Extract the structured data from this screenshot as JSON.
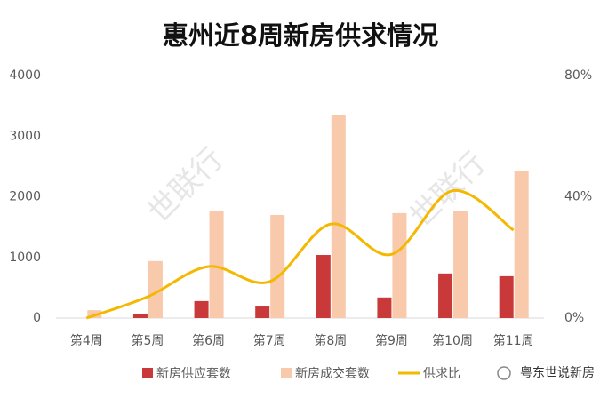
{
  "chart_data": {
    "type": "bar-line",
    "title": "惠州近8周新房供求情况",
    "categories": [
      "第4周",
      "第5周",
      "第6周",
      "第7周",
      "第8周",
      "第9周",
      "第10周",
      "第11周"
    ],
    "series": [
      {
        "name": "新房供应套数",
        "type": "bar",
        "color": "#c9393a",
        "values": [
          0,
          60,
          280,
          190,
          1040,
          340,
          735,
          690
        ]
      },
      {
        "name": "新房成交套数",
        "type": "bar",
        "color": "#f8c9ab",
        "values": [
          130,
          940,
          1760,
          1700,
          3355,
          1730,
          1760,
          2420
        ]
      },
      {
        "name": "供求比",
        "type": "line",
        "axis": "y2",
        "color": "#f5b800",
        "values": [
          0,
          7,
          17,
          12,
          31,
          21,
          42,
          29
        ]
      }
    ],
    "ylim": [
      0,
      4000
    ],
    "yticks": [
      0,
      1000,
      2000,
      3000,
      4000
    ],
    "y2lim": [
      0,
      80
    ],
    "y2ticks": [
      {
        "value": 0,
        "label": "0%"
      },
      {
        "value": 40,
        "label": "40%"
      },
      {
        "value": 80,
        "label": "80%"
      }
    ],
    "grid": false,
    "legend": "bottom",
    "watermarks": [
      "世联行",
      "世联行"
    ],
    "source": "粤东世说新房"
  }
}
